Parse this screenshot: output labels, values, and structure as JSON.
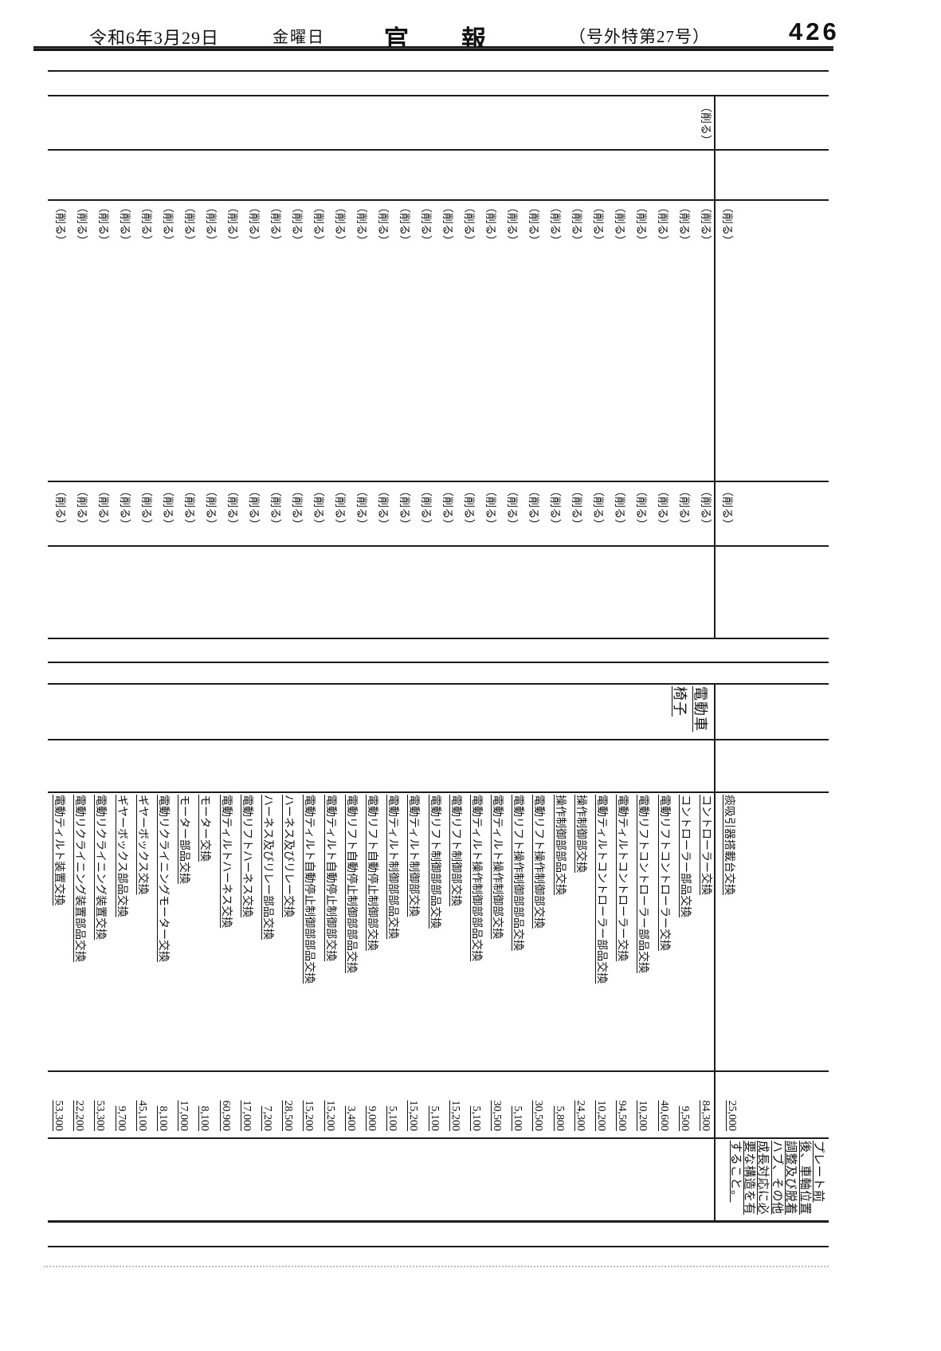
{
  "header": {
    "date": "令和6年3月29日",
    "weekday": "金曜日",
    "title": "官報",
    "issue": "（号外特第27号）",
    "page_number": "426"
  },
  "upper_table": {
    "marker": "（削る）",
    "total_rows": 32,
    "first_row_marker_cells": [
      "part",
      "price"
    ],
    "name_marker_row_index": 2,
    "other_rows_marker_cells": [
      "part",
      "price"
    ]
  },
  "lower_table": {
    "item_group": "電動車椅子",
    "first_row": {
      "name": "痰吸引器搭載台交換",
      "price": "25,000",
      "note": "プレート前後、車軸位置調整及び脱着ハブ、その他成長対応に必要な構造を有すること。"
    },
    "rows": [
      {
        "name": "コントローラー交換",
        "price": "84,300"
      },
      {
        "name": "コントローラー部品交換",
        "price": "9,500"
      },
      {
        "name": "電動リフトコントローラー交換",
        "price": "40,600"
      },
      {
        "name": "電動リフトコントローラー部品交換",
        "price": "10,200"
      },
      {
        "name": "電動ティルトコントローラー交換",
        "price": "94,500"
      },
      {
        "name": "電動ティルトコントローラー部品交換",
        "price": "10,200"
      },
      {
        "name": "操作制御部交換",
        "price": "24,300"
      },
      {
        "name": "操作制御部部品交換",
        "price": "5,800"
      },
      {
        "name": "電動リフト操作制御部交換",
        "price": "30,500"
      },
      {
        "name": "電動リフト操作制御部部品交換",
        "price": "5,100"
      },
      {
        "name": "電動ティルト操作制御部交換",
        "price": "30,500"
      },
      {
        "name": "電動ティルト操作制御部部品交換",
        "price": "5,100"
      },
      {
        "name": "電動リフト制御部交換",
        "price": "15,200"
      },
      {
        "name": "電動リフト制御部部品交換",
        "price": "5,100"
      },
      {
        "name": "電動ティルト制御部交換",
        "price": "15,200"
      },
      {
        "name": "電動ティルト制御部部品交換",
        "price": "5,100"
      },
      {
        "name": "電動リフト自動停止制御部交換",
        "price": "9,000"
      },
      {
        "name": "電動リフト自動停止制御部部品交換",
        "price": "3,400"
      },
      {
        "name": "電動ティルト自動停止制御部交換",
        "price": "15,200"
      },
      {
        "name": "電動ティルト自動停止制御部部品交換",
        "price": "15,200"
      },
      {
        "name": "ハーネス及びリレー交換",
        "price": "28,500"
      },
      {
        "name": "ハーネス及びリレー部品交換",
        "price": "7,200"
      },
      {
        "name": "電動リフトハーネス交換",
        "price": "17,000"
      },
      {
        "name": "電動ティルトハーネス交換",
        "price": "60,900"
      },
      {
        "name": "モーター交換",
        "price": "8,100"
      },
      {
        "name": "モーター部品交換",
        "price": "17,000"
      },
      {
        "name": "電動リクライニングモーター交換",
        "price": "8,100"
      },
      {
        "name": "ギヤーボックス交換",
        "price": "45,100"
      },
      {
        "name": "ギヤーボックス部品交換",
        "price": "9,700"
      },
      {
        "name": "電動リクライニング装置交換",
        "price": "53,300"
      },
      {
        "name": "電動リクライニング装置部品交換",
        "price": "22,200"
      },
      {
        "name": "電動ティルト装置交換",
        "price": "53,300"
      }
    ]
  }
}
